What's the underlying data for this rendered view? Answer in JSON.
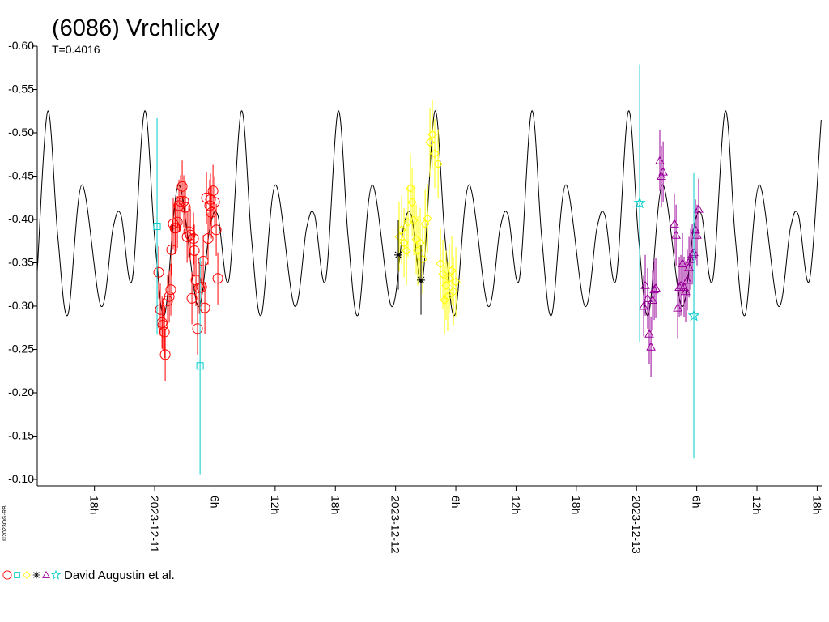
{
  "chart_data": {
    "type": "lightcurve",
    "title": "(6086) Vrchlicky",
    "subtitle": "T=0.4016",
    "credit": "©2023OG-RB",
    "legend_label": "David Augustin et al.",
    "xlim": [
      -11.7,
      66.45
    ],
    "ylim": [
      -0.0925,
      -0.6
    ],
    "yticks": [
      {
        "value": -0.6,
        "label": "-0.60"
      },
      {
        "value": -0.55,
        "label": "-0.55"
      },
      {
        "value": -0.5,
        "label": "-0.50"
      },
      {
        "value": -0.45,
        "label": "-0.45"
      },
      {
        "value": -0.4,
        "label": "-0.40"
      },
      {
        "value": -0.35,
        "label": "-0.35"
      },
      {
        "value": -0.3,
        "label": "-0.30"
      },
      {
        "value": -0.25,
        "label": "-0.25"
      },
      {
        "value": -0.2,
        "label": "-0.20"
      },
      {
        "value": -0.15,
        "label": "-0.15"
      },
      {
        "value": -0.1,
        "label": "-0.10"
      }
    ],
    "xticks": [
      {
        "value": -6,
        "label": "18h"
      },
      {
        "value": 0,
        "label": "2023-12-11"
      },
      {
        "value": 6,
        "label": "6h"
      },
      {
        "value": 12,
        "label": "12h"
      },
      {
        "value": 18,
        "label": "18h"
      },
      {
        "value": 24,
        "label": "2023-12-12"
      },
      {
        "value": 30,
        "label": "6h"
      },
      {
        "value": 36,
        "label": "12h"
      },
      {
        "value": 42,
        "label": "18h"
      },
      {
        "value": 48,
        "label": "2023-12-13"
      },
      {
        "value": 54,
        "label": "6h"
      },
      {
        "value": 60,
        "label": "12h"
      },
      {
        "value": 66,
        "label": "18h"
      }
    ],
    "model": {
      "color": "#000000",
      "x": [
        -11.7,
        -10.65,
        -9.65,
        -8.65,
        -7.25,
        -5.35,
        -4.15,
        -3.35,
        -2.25,
        -1.01,
        -0.01,
        0.99,
        2.39,
        4.29,
        5.49,
        6.29,
        7.39,
        8.63,
        9.63,
        10.63,
        12.03,
        13.93,
        15.13,
        15.93,
        17.03,
        18.27,
        19.27,
        20.27,
        21.67,
        23.57,
        24.77,
        25.57,
        26.67,
        27.91,
        28.91,
        29.91,
        31.31,
        33.21,
        34.41,
        35.21,
        36.31,
        37.55,
        38.55,
        39.55,
        40.95,
        42.85,
        44.05,
        44.85,
        45.95,
        47.19,
        48.19,
        49.19,
        50.59,
        52.49,
        53.69,
        54.49,
        55.59,
        56.83,
        57.83,
        58.83,
        60.23,
        62.13,
        63.33,
        64.13,
        65.23,
        66.4
      ],
      "values": [
        -0.34,
        -0.525,
        -0.38,
        -0.29,
        -0.44,
        -0.3,
        -0.39,
        -0.405,
        -0.33,
        -0.525,
        -0.38,
        -0.29,
        -0.44,
        -0.3,
        -0.39,
        -0.405,
        -0.33,
        -0.525,
        -0.38,
        -0.29,
        -0.44,
        -0.3,
        -0.39,
        -0.405,
        -0.33,
        -0.525,
        -0.38,
        -0.29,
        -0.44,
        -0.3,
        -0.39,
        -0.405,
        -0.33,
        -0.525,
        -0.38,
        -0.29,
        -0.44,
        -0.3,
        -0.39,
        -0.405,
        -0.33,
        -0.525,
        -0.38,
        -0.29,
        -0.44,
        -0.3,
        -0.39,
        -0.405,
        -0.33,
        -0.525,
        -0.38,
        -0.29,
        -0.44,
        -0.3,
        -0.39,
        -0.405,
        -0.33,
        -0.525,
        -0.38,
        -0.29,
        -0.44,
        -0.3,
        -0.39,
        -0.405,
        -0.33,
        -0.515
      ]
    },
    "series": [
      {
        "color": "#ff0000",
        "marker": "circle",
        "x": [
          0.4,
          0.56,
          0.73,
          0.81,
          0.97,
          1.05,
          1.29,
          1.45,
          1.61,
          1.69,
          1.85,
          2.02,
          2.1,
          2.26,
          2.42,
          2.58,
          2.74,
          2.9,
          3.06,
          3.23,
          3.39,
          3.55,
          3.71,
          3.87,
          3.95,
          4.11,
          4.27,
          4.44,
          4.68,
          4.84,
          5.0,
          5.16,
          5.32,
          5.48,
          5.56,
          5.65,
          5.81,
          5.97,
          6.13,
          6.29
        ],
        "values": [
          -0.339,
          -0.296,
          -0.281,
          -0.278,
          -0.27,
          -0.244,
          -0.306,
          -0.311,
          -0.319,
          -0.365,
          -0.395,
          -0.39,
          -0.39,
          -0.397,
          -0.416,
          -0.421,
          -0.438,
          -0.421,
          -0.414,
          -0.38,
          -0.386,
          -0.382,
          -0.309,
          -0.378,
          -0.364,
          -0.33,
          -0.274,
          -0.321,
          -0.322,
          -0.352,
          -0.298,
          -0.425,
          -0.378,
          -0.416,
          -0.423,
          -0.408,
          -0.433,
          -0.42,
          -0.388,
          -0.332
        ],
        "errors": [
          0.03,
          0.03,
          0.03,
          0.03,
          0.03,
          0.03,
          0.03,
          0.03,
          0.03,
          0.03,
          0.03,
          0.03,
          0.03,
          0.03,
          0.03,
          0.03,
          0.03,
          0.03,
          0.03,
          0.03,
          0.03,
          0.03,
          0.03,
          0.03,
          0.03,
          0.03,
          0.03,
          0.03,
          0.03,
          0.03,
          0.03,
          0.03,
          0.03,
          0.03,
          0.03,
          0.03,
          0.03,
          0.03,
          0.03,
          0.03
        ]
      },
      {
        "color": "#00cccc",
        "marker": "square",
        "x": [
          0.24,
          4.52
        ],
        "values": [
          -0.392,
          -0.231
        ],
        "errors": [
          0.125,
          0.125
        ]
      },
      {
        "color": "#ffff00",
        "marker": "diamond",
        "x": [
          24.35,
          24.6,
          24.84,
          25.08,
          25.24,
          25.48,
          25.65,
          25.81,
          26.05,
          26.21,
          26.45,
          26.69,
          26.94,
          27.18,
          27.42,
          27.66,
          27.9,
          28.23,
          28.47,
          28.71,
          28.87,
          29.03,
          29.19,
          29.35,
          29.6,
          29.76,
          30.0
        ],
        "values": [
          -0.38,
          -0.388,
          -0.373,
          -0.364,
          -0.397,
          -0.436,
          -0.42,
          -0.399,
          -0.377,
          -0.364,
          -0.373,
          -0.354,
          -0.395,
          -0.401,
          -0.489,
          -0.498,
          -0.476,
          -0.464,
          -0.349,
          -0.337,
          -0.307,
          -0.324,
          -0.311,
          -0.332,
          -0.341,
          -0.317,
          -0.328
        ],
        "errors": [
          0.04,
          0.04,
          0.04,
          0.04,
          0.04,
          0.04,
          0.04,
          0.04,
          0.04,
          0.04,
          0.04,
          0.04,
          0.04,
          0.04,
          0.04,
          0.04,
          0.04,
          0.04,
          0.04,
          0.04,
          0.04,
          0.04,
          0.04,
          0.04,
          0.04,
          0.04,
          0.04
        ]
      },
      {
        "color": "#000000",
        "marker": "asterisk",
        "x": [
          24.27,
          26.53
        ],
        "values": [
          -0.359,
          -0.33
        ],
        "errors": [
          0.04,
          0.04
        ]
      },
      {
        "color": "#990099",
        "marker": "triangle",
        "x": [
          48.71,
          48.87,
          49.11,
          49.27,
          49.44,
          49.6,
          49.76,
          49.92,
          50.32,
          50.48,
          50.65,
          51.77,
          51.94,
          52.1,
          52.26,
          52.42,
          52.58,
          52.74,
          52.9,
          53.06,
          53.23,
          53.39,
          53.55,
          53.71,
          53.87,
          54.03,
          54.19
        ],
        "values": [
          -0.3,
          -0.324,
          -0.309,
          -0.268,
          -0.253,
          -0.307,
          -0.319,
          -0.321,
          -0.468,
          -0.45,
          -0.455,
          -0.395,
          -0.382,
          -0.298,
          -0.322,
          -0.324,
          -0.349,
          -0.322,
          -0.317,
          -0.33,
          -0.345,
          -0.354,
          -0.36,
          -0.362,
          -0.388,
          -0.382,
          -0.412
        ],
        "errors": [
          0.035,
          0.035,
          0.035,
          0.035,
          0.035,
          0.035,
          0.035,
          0.035,
          0.035,
          0.035,
          0.035,
          0.035,
          0.035,
          0.035,
          0.035,
          0.035,
          0.035,
          0.035,
          0.035,
          0.035,
          0.035,
          0.035,
          0.035,
          0.035,
          0.035,
          0.035,
          0.035
        ]
      },
      {
        "color": "#00cccc",
        "marker": "star",
        "x": [
          48.31,
          53.71
        ],
        "values": [
          -0.419,
          -0.289
        ],
        "errors": [
          0.16,
          0.165
        ]
      }
    ]
  }
}
